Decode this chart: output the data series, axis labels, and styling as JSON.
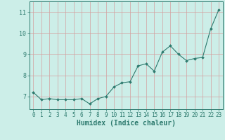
{
  "x": [
    0,
    1,
    2,
    3,
    4,
    5,
    6,
    7,
    8,
    9,
    10,
    11,
    12,
    13,
    14,
    15,
    16,
    17,
    18,
    19,
    20,
    21,
    22,
    23
  ],
  "y": [
    7.2,
    6.85,
    6.9,
    6.85,
    6.85,
    6.85,
    6.9,
    6.65,
    6.9,
    7.0,
    7.45,
    7.65,
    7.7,
    8.45,
    8.55,
    8.2,
    9.1,
    9.4,
    9.0,
    8.7,
    8.8,
    8.85,
    10.2,
    11.1
  ],
  "line_color": "#2d7a6e",
  "marker": "D",
  "marker_size": 2.0,
  "bg_color": "#cceee8",
  "grid_color": "#d4a0a0",
  "xlabel": "Humidex (Indice chaleur)",
  "ylim": [
    6.4,
    11.5
  ],
  "xlim": [
    -0.5,
    23.5
  ],
  "yticks": [
    7,
    8,
    9,
    10,
    11
  ],
  "xticks": [
    0,
    1,
    2,
    3,
    4,
    5,
    6,
    7,
    8,
    9,
    10,
    11,
    12,
    13,
    14,
    15,
    16,
    17,
    18,
    19,
    20,
    21,
    22,
    23
  ],
  "tick_color": "#2d7a6e",
  "axis_color": "#2d7a6e",
  "xlabel_fontsize": 7.0,
  "tick_fontsize": 5.5
}
